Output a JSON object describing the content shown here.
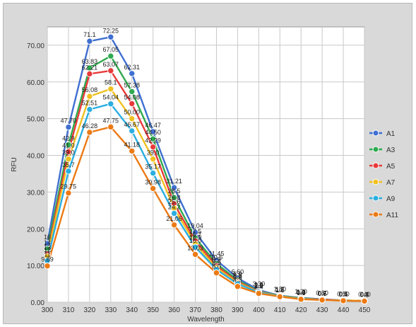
{
  "chart_data": {
    "type": "line",
    "title": "",
    "xlabel": "Wavelength",
    "ylabel": "RFU",
    "x": [
      300,
      310,
      320,
      330,
      340,
      350,
      360,
      370,
      380,
      390,
      400,
      410,
      420,
      430,
      440,
      450
    ],
    "x_tick_labels": [
      "300",
      "310",
      "320",
      "330",
      "340",
      "350",
      "360",
      "370",
      "380",
      "390",
      "400",
      "410",
      "420",
      "430",
      "440",
      "450"
    ],
    "xlim": [
      300,
      450
    ],
    "ylim": [
      0,
      75
    ],
    "y_ticks": [
      0,
      10,
      20,
      30,
      40,
      50,
      60,
      70
    ],
    "y_tick_labels": [
      "0.00",
      "10.00",
      "20.00",
      "30.00",
      "40.00",
      "50.00",
      "60.00",
      "70.00"
    ],
    "grid": true,
    "legend_position": "right",
    "series": [
      {
        "name": "A1",
        "color": "#3f6fd0",
        "values": [
          16,
          47.7,
          71.1,
          72.25,
          62.31,
          46.47,
          31.21,
          19.04,
          11.45,
          6.6,
          3.3,
          1.8,
          1.2,
          0.8,
          0.5,
          0.4
        ],
        "labels": [
          "16",
          "47.70",
          "71.1",
          "72.25",
          "62.31",
          "46.47",
          "31.21",
          "19.04",
          "11.45",
          "6.60",
          "3.30",
          "1.80",
          "1.20",
          "0.80",
          "0.50",
          "0.40"
        ]
      },
      {
        "name": "A3",
        "color": "#2faa4f",
        "values": [
          14.5,
          42.9,
          63.83,
          67.05,
          57.38,
          44.5,
          28.5,
          17.5,
          10.5,
          6.0,
          3.0,
          1.7,
          1.1,
          0.7,
          0.5,
          0.4
        ],
        "labels": [
          "14",
          "42.9",
          "63.83",
          "67.05",
          "57.38",
          "44.50",
          "28.5",
          "17.5",
          "10.5",
          "6.0",
          "3.0",
          "1.7",
          "1.1",
          "0.7",
          "0.5",
          "0.4"
        ]
      },
      {
        "name": "A5",
        "color": "#e83a3a",
        "values": [
          13.2,
          41.0,
          62.21,
          63.07,
          54.08,
          42.29,
          26.8,
          16.7,
          9.9,
          5.6,
          2.9,
          1.6,
          1.0,
          0.7,
          0.5,
          0.4
        ],
        "labels": [
          "13",
          "41.0",
          "62.21",
          "63.07",
          "54.08",
          "42.29",
          "26.8",
          "16.7",
          "9.9",
          "5.6",
          "2.9",
          "1.6",
          "1.0",
          "0.7",
          "0.5",
          "0.4"
        ]
      },
      {
        "name": "A7",
        "color": "#f0c020",
        "values": [
          12.5,
          39.0,
          56.08,
          58.1,
          50.0,
          39.0,
          25.6,
          15.9,
          9.4,
          5.3,
          2.8,
          1.6,
          1.0,
          0.6,
          0.5,
          0.4
        ],
        "labels": [
          "12",
          "39.0",
          "56.08",
          "58.1",
          "50.00",
          "39.0",
          "25.6",
          "15.9",
          "9.4",
          "5.3",
          "2.8",
          "1.6",
          "1.0",
          "0.6",
          "0.5",
          "0.4"
        ]
      },
      {
        "name": "A9",
        "color": "#2aaee0",
        "values": [
          11.3,
          35.7,
          52.51,
          54.04,
          46.67,
          35.17,
          24.2,
          15.0,
          8.9,
          5.0,
          2.7,
          1.5,
          0.9,
          0.6,
          0.4,
          0.3
        ],
        "labels": [
          "11",
          "35.7",
          "52.51",
          "54.04",
          "46.67",
          "35.17",
          "24.2",
          "15.0",
          "8.9",
          "5.0",
          "2.7",
          "1.5",
          "0.9",
          "0.6",
          "0.4",
          "0.3"
        ]
      },
      {
        "name": "A11",
        "color": "#ec7a14",
        "values": [
          9.89,
          29.75,
          46.28,
          47.75,
          41.18,
          30.98,
          21.06,
          13.03,
          8.0,
          4.3,
          2.4,
          1.5,
          0.8,
          0.6,
          0.4,
          0.3
        ],
        "labels": [
          "9.89",
          "29.75",
          "46.28",
          "47.75",
          "41.18",
          "30.98",
          "21.06",
          "13.03",
          "8.0",
          "4.3",
          "2.4",
          "1.5",
          "0.8",
          "0.6",
          "0.4",
          "0.3"
        ]
      }
    ]
  }
}
